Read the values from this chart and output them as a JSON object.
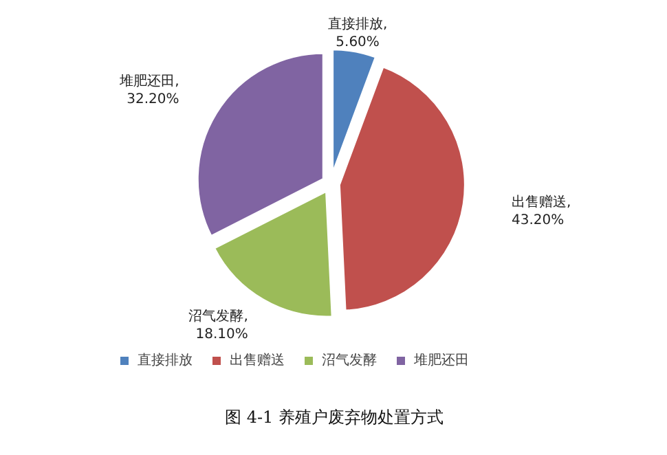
{
  "chart_data": {
    "type": "pie",
    "categories": [
      "直接排放",
      "出售赠送",
      "沼气发酵",
      "堆肥还田"
    ],
    "values": [
      5.6,
      43.2,
      18.1,
      32.2
    ],
    "colors": [
      "#4f81bd",
      "#c0504d",
      "#9bbb59",
      "#8064a2"
    ],
    "value_labels": [
      "直接排放,\n5.60%",
      "出售赠送,\n43.20%",
      "沼气发酵,\n18.10%",
      "堆肥还田,\n32.20%"
    ],
    "legend": "bottom",
    "annotations": [
      "图 4-1 养殖户废弃物处置方式"
    ]
  }
}
